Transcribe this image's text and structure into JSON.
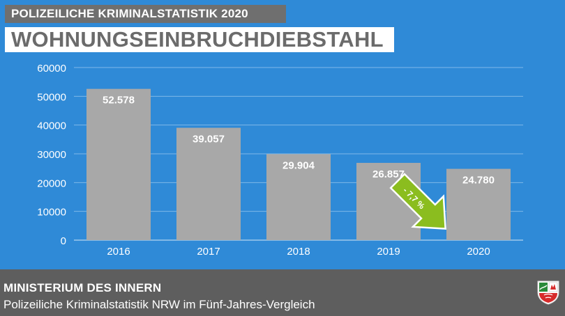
{
  "header": {
    "kicker": "POLIZEILICHE KRIMINALSTATISTIK 2020",
    "headline": "WOHNUNGSEINBRUCHDIEBSTAHL"
  },
  "chart_data": {
    "type": "bar",
    "categories": [
      "2016",
      "2017",
      "2018",
      "2019",
      "2020"
    ],
    "values": [
      52578,
      39057,
      29904,
      26857,
      24780
    ],
    "value_labels": [
      "52.578",
      "39.057",
      "29.904",
      "26.857",
      "24.780"
    ],
    "y_ticks": [
      0,
      10000,
      20000,
      30000,
      40000,
      50000,
      60000
    ],
    "ylim": [
      0,
      60000
    ],
    "grid": true,
    "annotation": {
      "text": "- 7,7 %",
      "color": "#8bbd1f"
    },
    "colors": {
      "background": "#2f8ad7",
      "bar": "#a8a8a8",
      "grid": "#7fb8e8"
    }
  },
  "footer": {
    "title": "MINISTERIUM DES INNERN",
    "subtitle": "Polizeiliche Kriminalstatistik NRW im Fünf-Jahres-Vergleich",
    "crest_icon": "nrw-coat-of-arms-icon"
  }
}
